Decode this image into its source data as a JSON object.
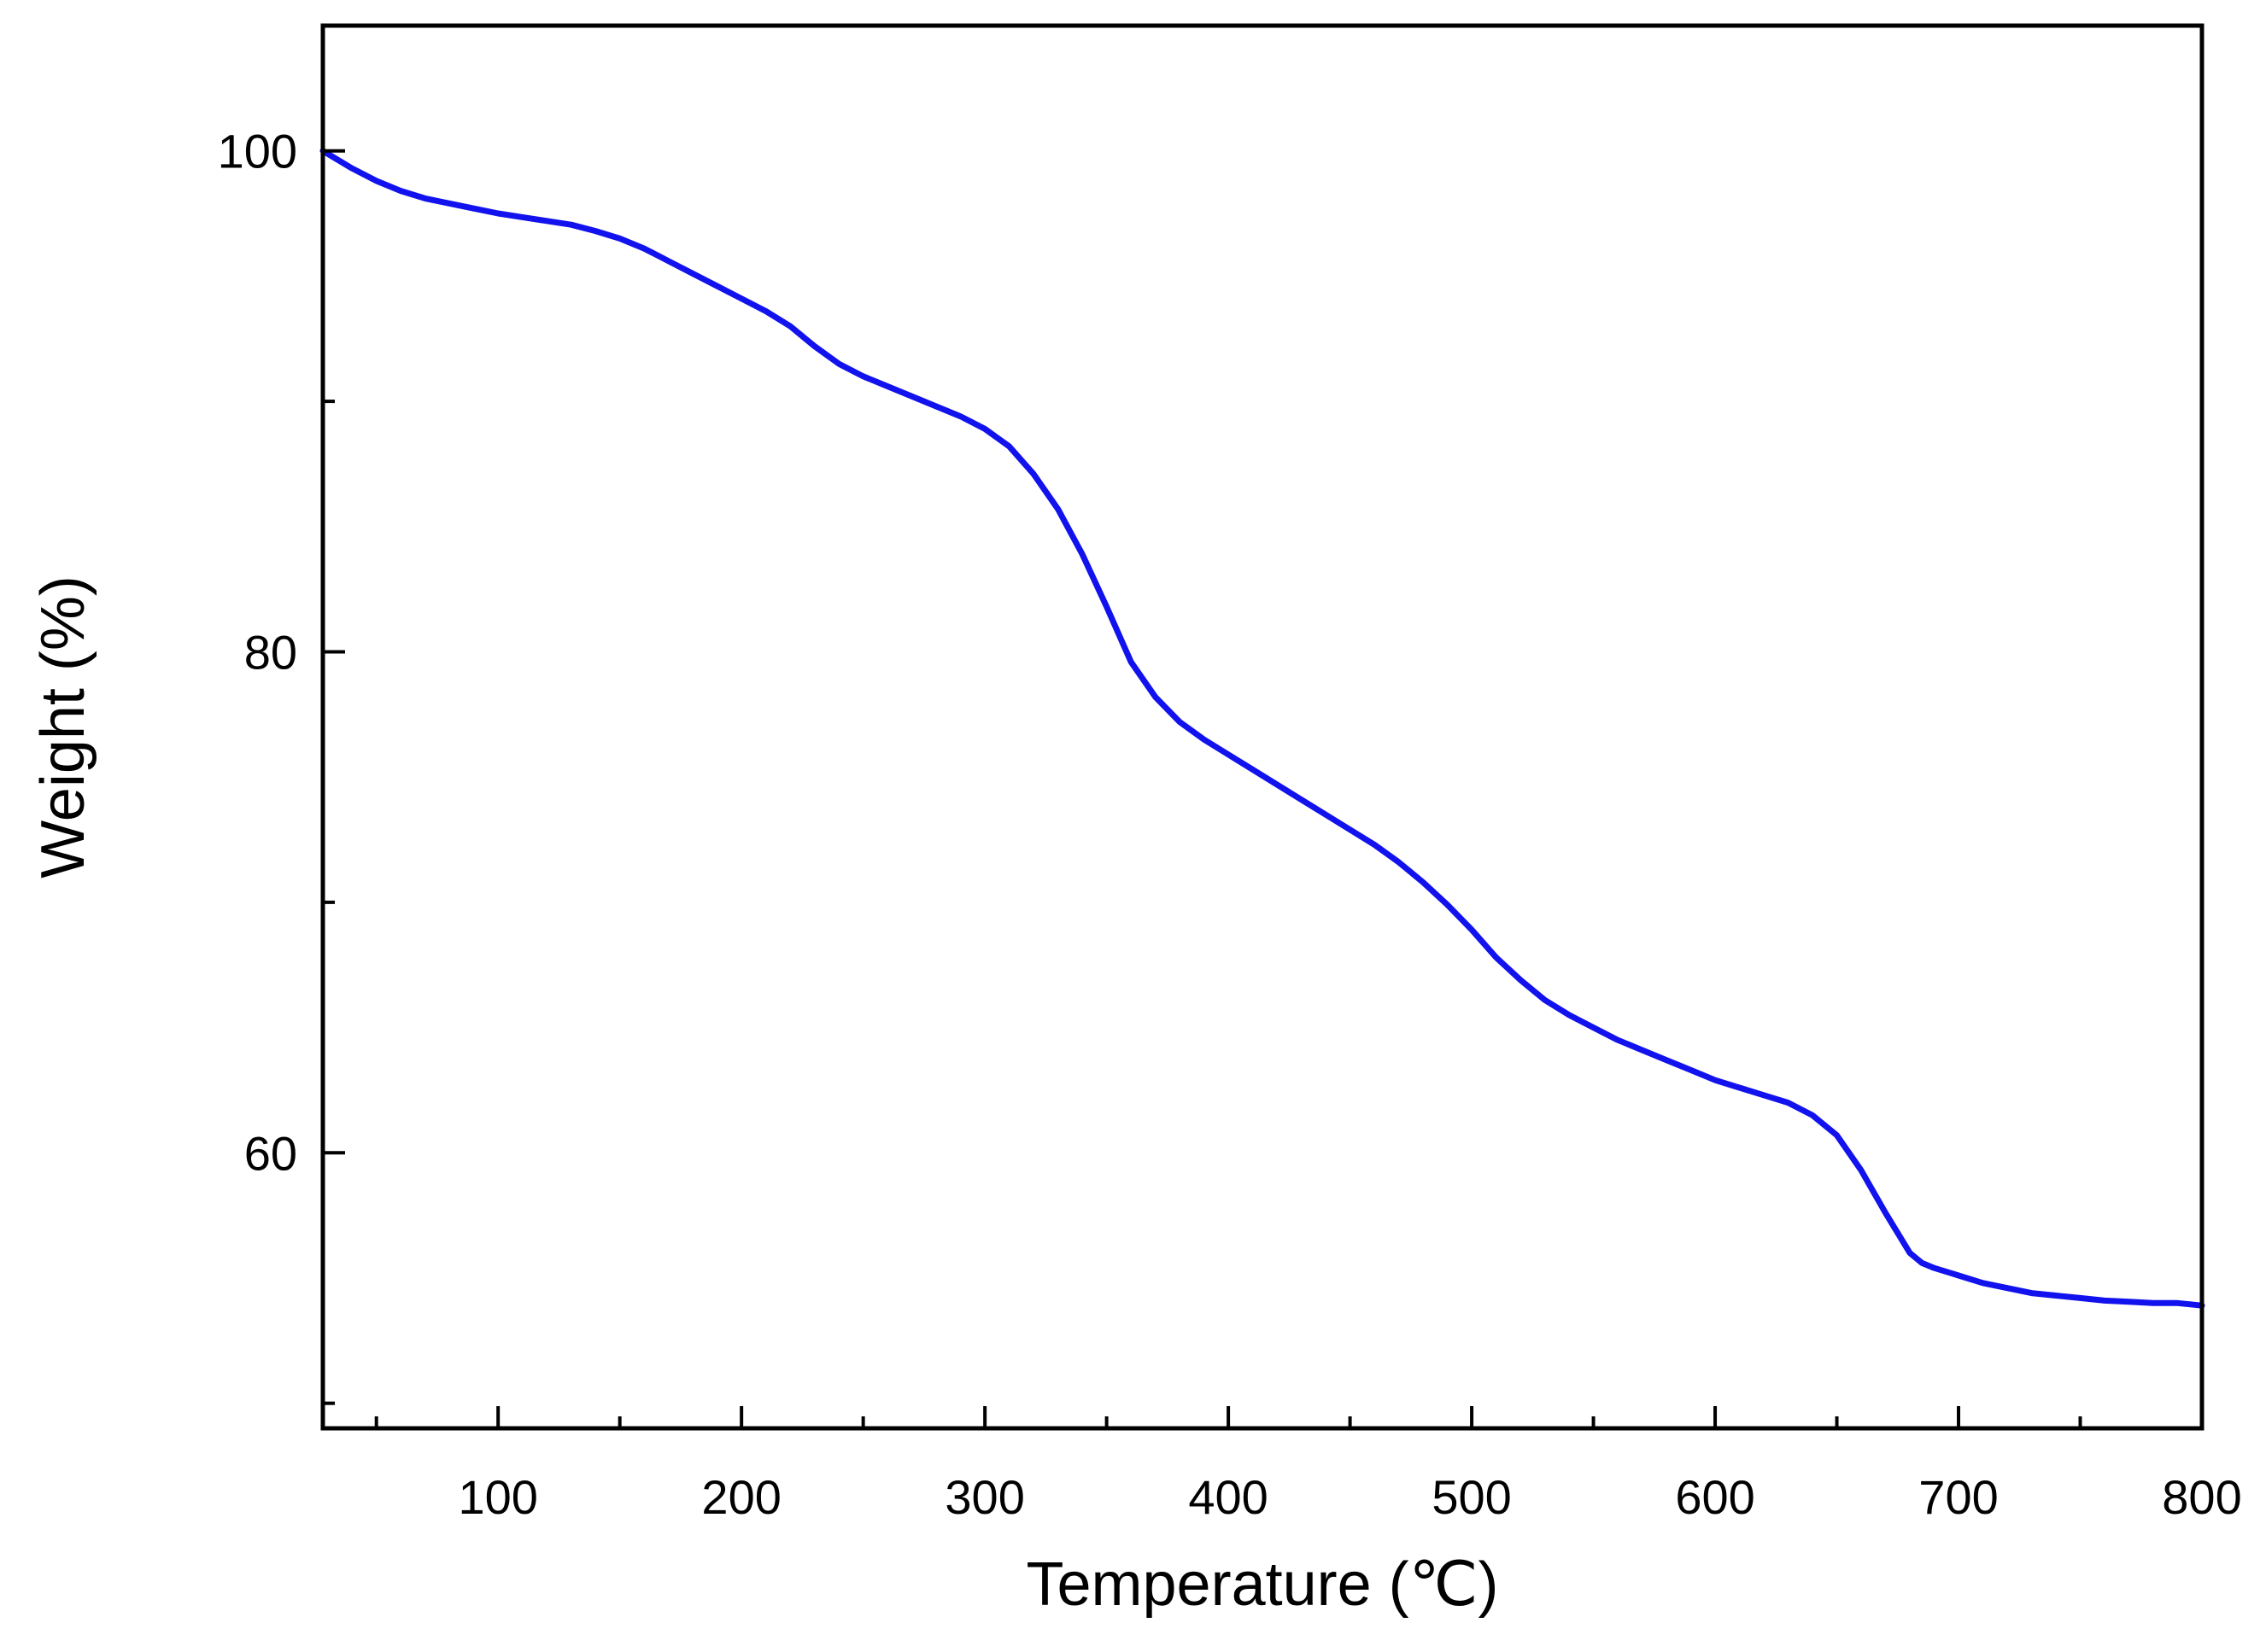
{
  "chart_data": {
    "type": "line",
    "title": "",
    "xlabel": "Temperature (℃)",
    "ylabel": "Weight (%)",
    "xlim": [
      28,
      800
    ],
    "ylim": [
      49,
      105
    ],
    "x_ticks": [
      100,
      200,
      300,
      400,
      500,
      600,
      700,
      800
    ],
    "x_tick_labels": [
      "100",
      "200",
      "300",
      "400",
      "500",
      "600",
      "700",
      "800"
    ],
    "x_minor_ticks": [
      50,
      150,
      250,
      350,
      450,
      550,
      650,
      750
    ],
    "y_ticks": [
      60,
      80,
      100
    ],
    "y_tick_labels": [
      "60",
      "80",
      "100"
    ],
    "y_minor_ticks": [
      50,
      70,
      90
    ],
    "grid": false,
    "legend": "none",
    "series": [
      {
        "color": "#1212EE",
        "x": [
          28,
          40,
          50,
          60,
          70,
          80,
          90,
          100,
          110,
          120,
          130,
          140,
          150,
          160,
          170,
          180,
          190,
          200,
          210,
          220,
          230,
          240,
          250,
          260,
          270,
          280,
          290,
          300,
          310,
          320,
          330,
          340,
          350,
          360,
          370,
          380,
          390,
          400,
          410,
          420,
          430,
          440,
          450,
          460,
          470,
          480,
          490,
          500,
          510,
          520,
          530,
          540,
          550,
          560,
          570,
          580,
          590,
          600,
          610,
          620,
          630,
          640,
          650,
          660,
          670,
          680,
          685,
          690,
          700,
          710,
          720,
          730,
          740,
          750,
          760,
          770,
          780,
          790,
          800
        ],
        "y": [
          100.0,
          99.3,
          98.8,
          98.4,
          98.1,
          97.9,
          97.7,
          97.5,
          97.35,
          97.2,
          97.05,
          96.8,
          96.5,
          96.1,
          95.6,
          95.1,
          94.6,
          94.1,
          93.6,
          93.0,
          92.2,
          91.5,
          91.0,
          90.6,
          90.2,
          89.8,
          89.4,
          88.9,
          88.2,
          87.1,
          85.7,
          83.9,
          81.8,
          79.6,
          78.2,
          77.2,
          76.5,
          75.9,
          75.3,
          74.7,
          74.1,
          73.5,
          72.9,
          72.3,
          71.6,
          70.8,
          69.9,
          68.9,
          67.8,
          66.9,
          66.1,
          65.5,
          65.0,
          64.5,
          64.1,
          63.7,
          63.3,
          62.9,
          62.6,
          62.3,
          62.0,
          61.5,
          60.7,
          59.3,
          57.6,
          56.0,
          55.6,
          55.4,
          55.1,
          54.8,
          54.6,
          54.4,
          54.3,
          54.2,
          54.1,
          54.05,
          54.0,
          54.0,
          53.9
        ]
      }
    ]
  }
}
